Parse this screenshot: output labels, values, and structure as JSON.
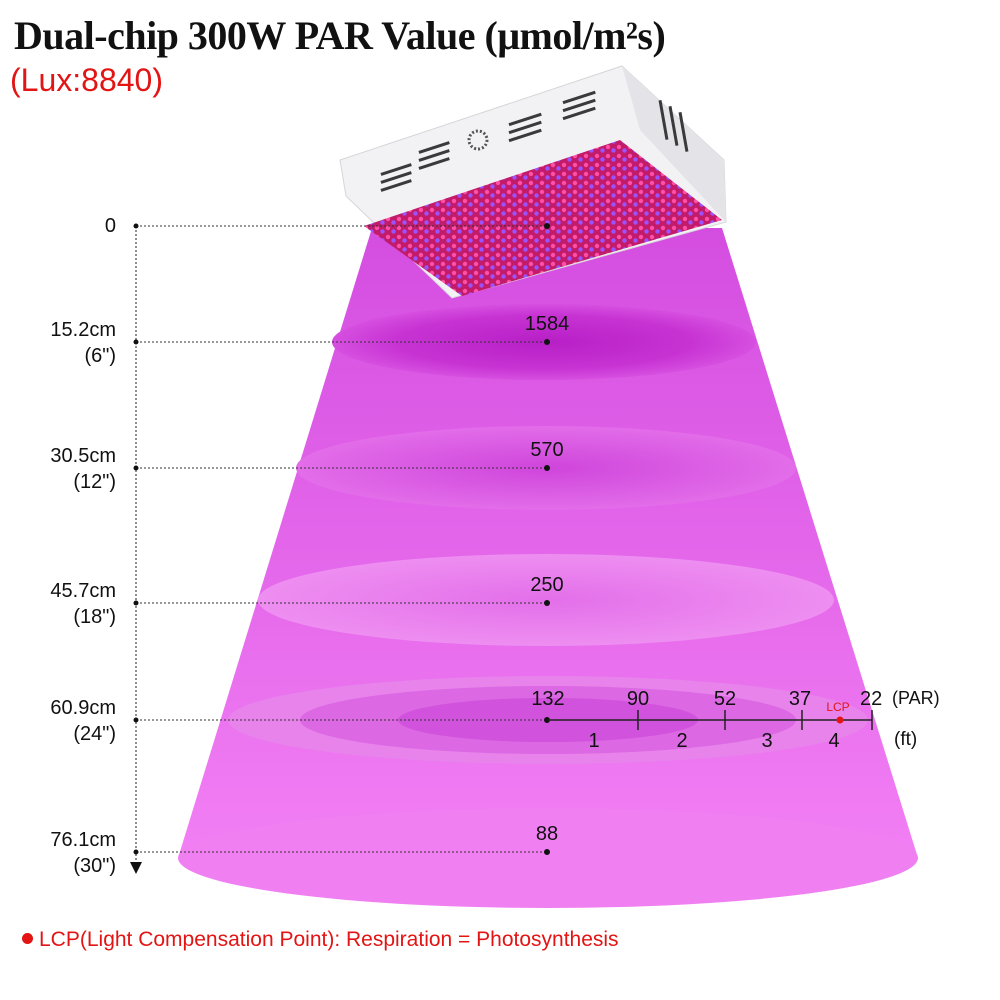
{
  "title": "Dual-chip 300W PAR Value (μmol/m²s)",
  "subtitle": "(Lux:8840)",
  "footnote": "LCP(Light Compensation Point): Respiration = Photosynthesis",
  "colors": {
    "accent_red": "#e31414",
    "beam": "#ea6cf0",
    "disc": "#c832d2",
    "text": "#111111"
  },
  "height_markers": [
    {
      "cm": "0",
      "inch": ""
    },
    {
      "cm": "15.2cm",
      "inch": "(6\")"
    },
    {
      "cm": "30.5cm",
      "inch": "(12\")"
    },
    {
      "cm": "45.7cm",
      "inch": "(18\")"
    },
    {
      "cm": "60.9cm",
      "inch": "(24\")"
    },
    {
      "cm": "76.1cm",
      "inch": "(30\")"
    }
  ],
  "center_par_values": [
    "",
    "1584",
    "570",
    "250",
    "132",
    "88"
  ],
  "spread_scale": {
    "par_values": [
      "132",
      "90",
      "52",
      "37",
      "22"
    ],
    "par_unit": "(PAR)",
    "ft_labels": [
      "1",
      "2",
      "3",
      "4"
    ],
    "ft_unit": "(ft)",
    "lcp_label": "LCP"
  }
}
